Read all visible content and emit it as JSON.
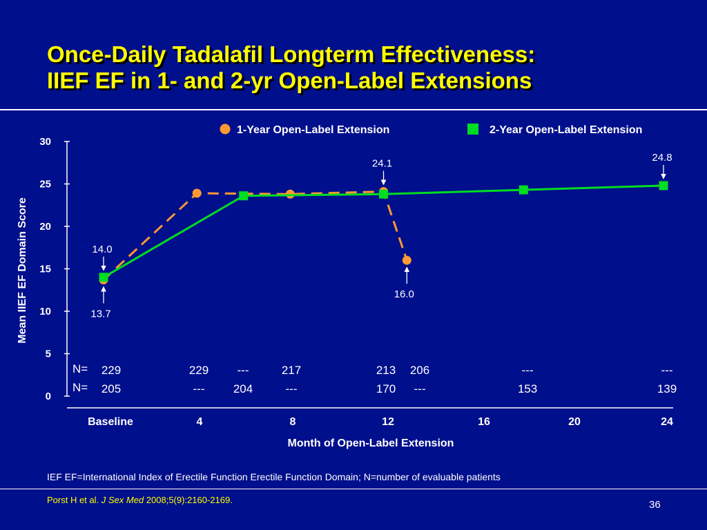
{
  "slide": {
    "title_line1": "Once-Daily Tadalafil Longterm Effectiveness:",
    "title_line2": "IIEF EF in 1- and 2-yr Open-Label Extensions",
    "footnote": "IEF EF=International Index of Erectile Function Erectile Function Domain; N=number of evaluable patients",
    "citation_prefix": "Porst H et al. ",
    "citation_journal": "J Sex Med",
    "citation_suffix": " 2008;5(9):2160-2169.",
    "page_number": "36"
  },
  "chart_data": {
    "type": "line",
    "xlabel": "Month of Open-Label Extension",
    "ylabel": "Mean IIEF EF Domain Score",
    "ylim": [
      0,
      30
    ],
    "yticks": [
      "0",
      "5",
      "10",
      "15",
      "20",
      "25",
      "30"
    ],
    "xticks": [
      {
        "label": "Baseline",
        "x": 0
      },
      {
        "label": "4",
        "x": 4
      },
      {
        "label": "8",
        "x": 8
      },
      {
        "label": "12",
        "x": 12
      },
      {
        "label": "16",
        "x": 16
      },
      {
        "label": "20",
        "x": 20
      },
      {
        "label": "24",
        "x": 24
      }
    ],
    "legend_position": "top",
    "series": [
      {
        "name": "1-Year Open-Label Extension",
        "color": "#ff9933",
        "line": "dashed",
        "marker": "circle",
        "x": [
          0,
          4,
          8,
          12,
          13
        ],
        "values": [
          13.7,
          23.9,
          23.8,
          24.1,
          16.0
        ]
      },
      {
        "name": "2-Year Open-Label Extension",
        "color": "#00dd22",
        "line": "solid",
        "marker": "square",
        "x": [
          0,
          6,
          12,
          18,
          24
        ],
        "values": [
          14.0,
          23.6,
          23.8,
          24.3,
          24.8
        ]
      }
    ],
    "annotations": [
      {
        "text": "14.0",
        "x": 0,
        "y": 14.0,
        "arrow": "down"
      },
      {
        "text": "13.7",
        "x": 0,
        "y": 13.7,
        "arrow": "up"
      },
      {
        "text": "24.1",
        "x": 12,
        "y": 24.1,
        "arrow": "down"
      },
      {
        "text": "16.0",
        "x": 13,
        "y": 16.0,
        "arrow": "up"
      },
      {
        "text": "24.8",
        "x": 24,
        "y": 24.8,
        "arrow": "down"
      }
    ],
    "n_rows": [
      {
        "label": "N=",
        "cells": [
          {
            "text": "229",
            "x": 0
          },
          {
            "text": "229",
            "x": 4
          },
          {
            "text": "---",
            "x": 6
          },
          {
            "text": "217",
            "x": 8
          },
          {
            "text": "213",
            "x": 12
          },
          {
            "text": "206",
            "x": 13
          },
          {
            "text": "---",
            "x": 18
          },
          {
            "text": "---",
            "x": 24
          }
        ]
      },
      {
        "label": "N=",
        "cells": [
          {
            "text": "205",
            "x": 0
          },
          {
            "text": "---",
            "x": 4
          },
          {
            "text": "204",
            "x": 6
          },
          {
            "text": "---",
            "x": 8
          },
          {
            "text": "170",
            "x": 12
          },
          {
            "text": "---",
            "x": 13
          },
          {
            "text": "153",
            "x": 18
          },
          {
            "text": "139",
            "x": 24
          }
        ]
      }
    ]
  }
}
